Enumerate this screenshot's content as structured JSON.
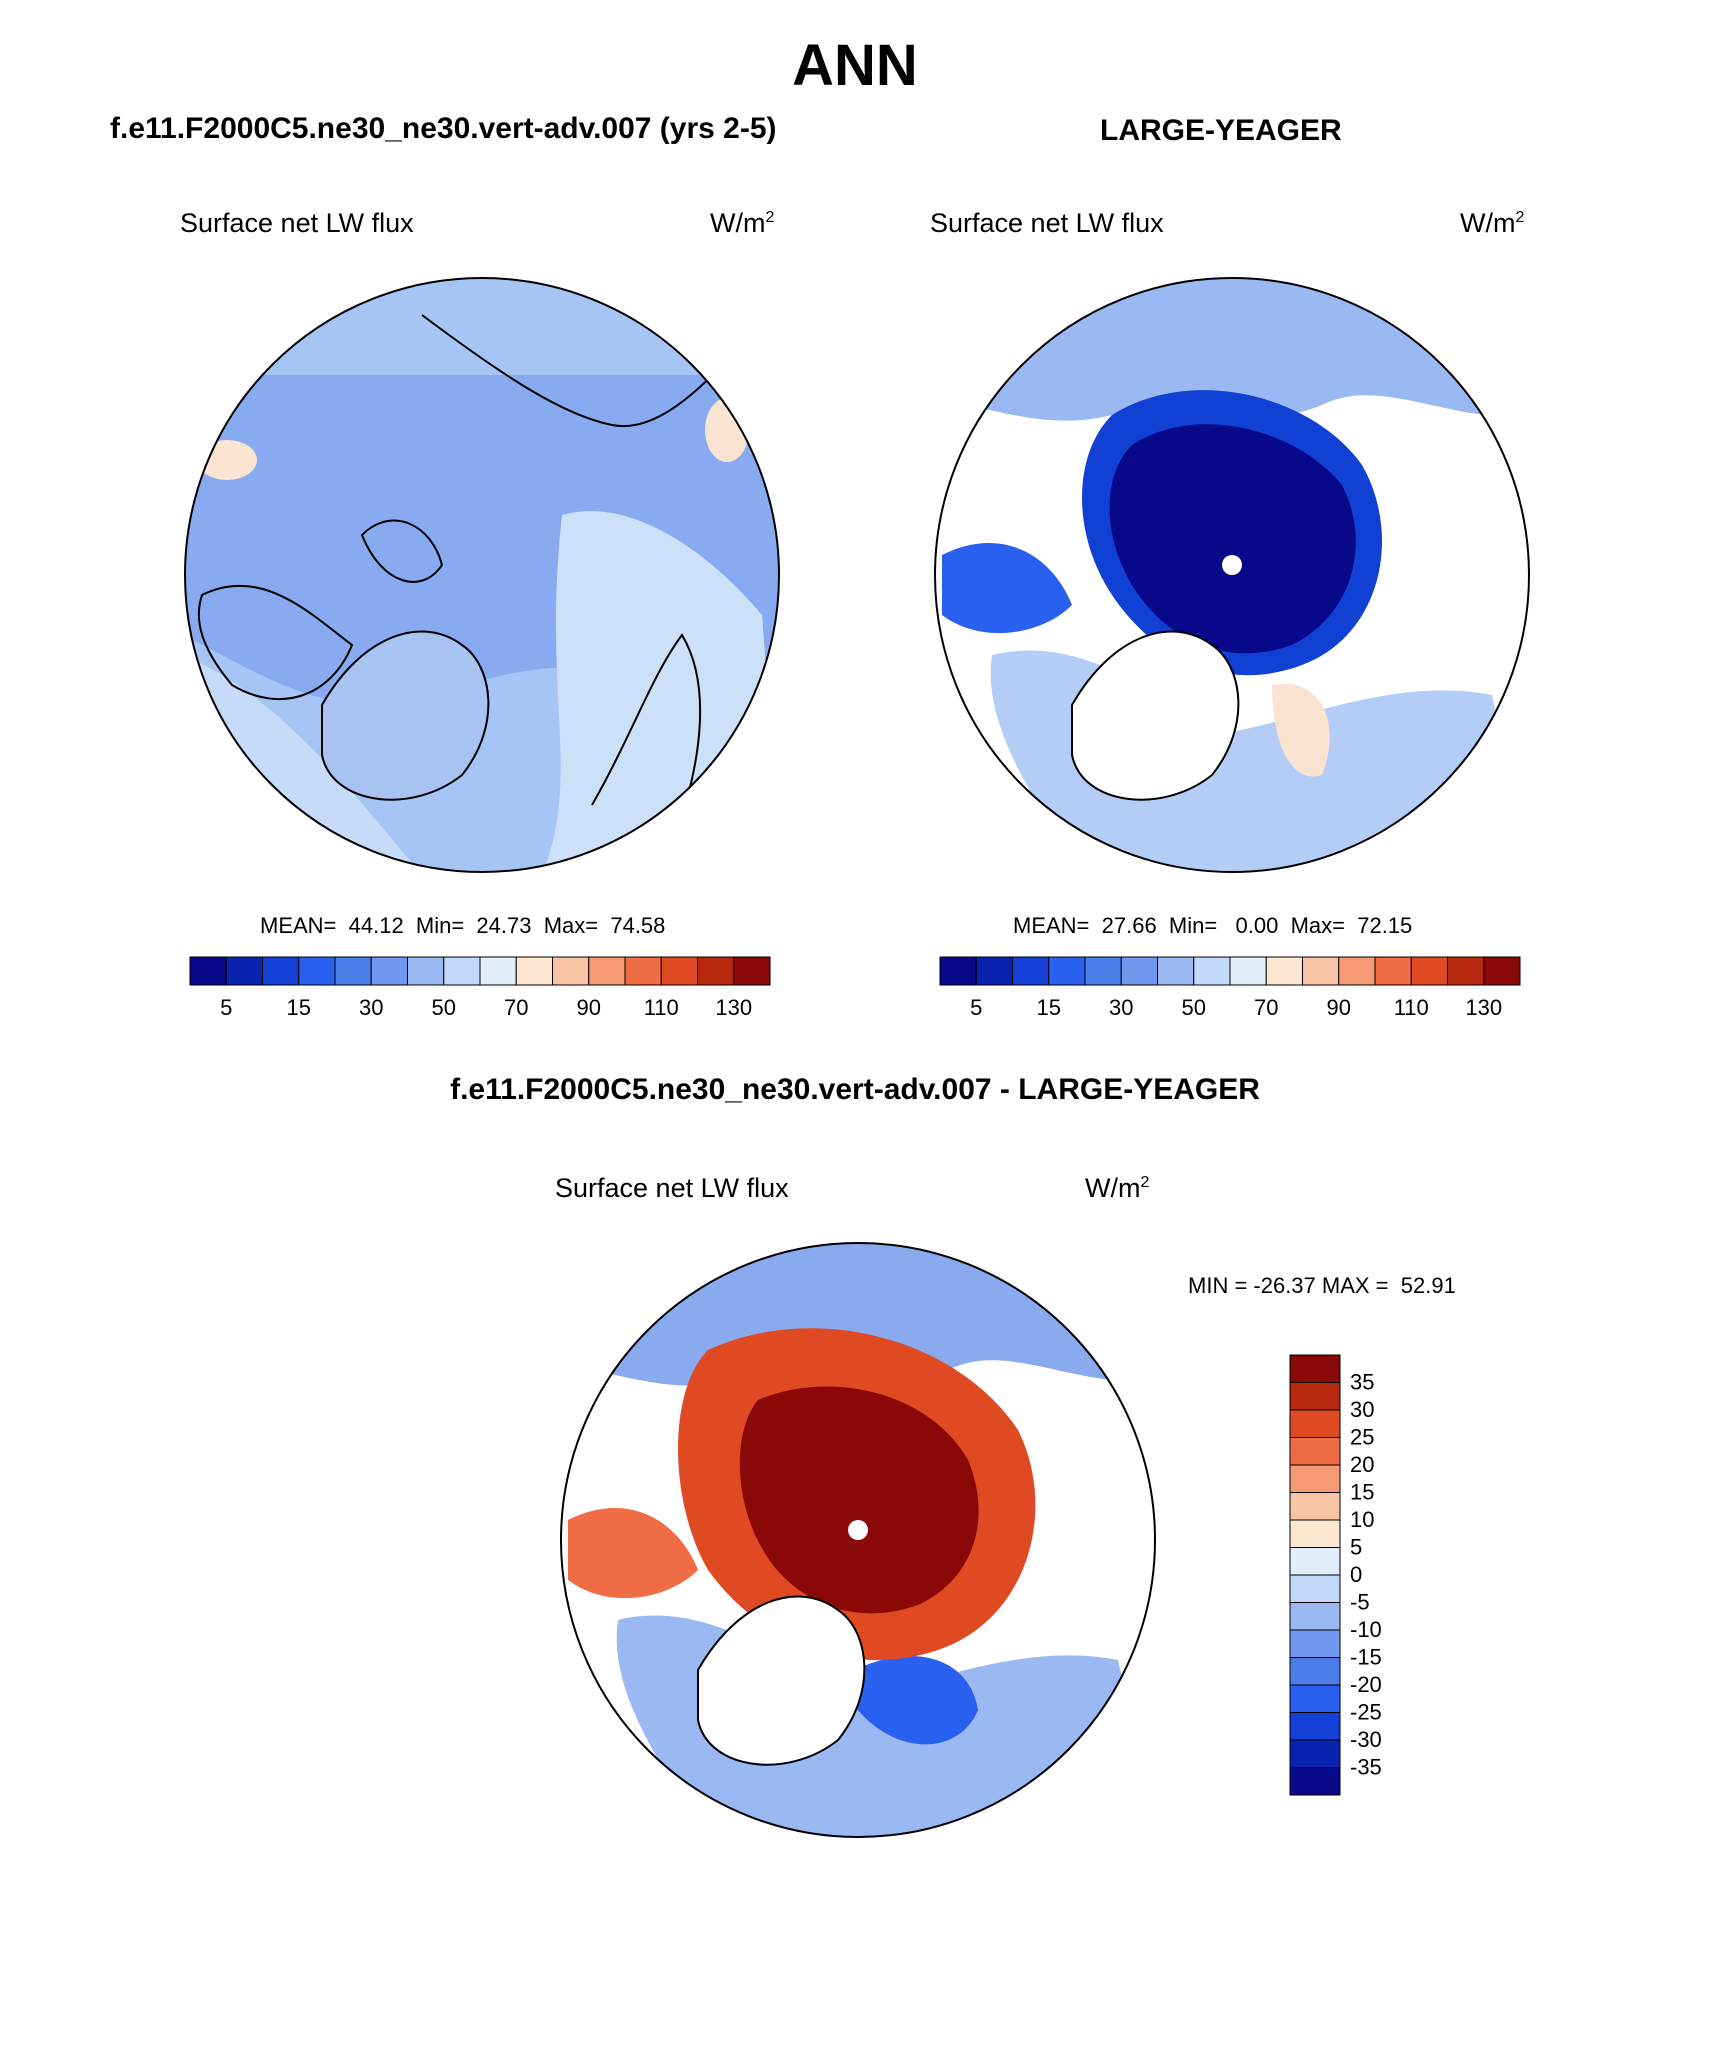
{
  "page": {
    "title": "ANN",
    "left_subtitle": "f.e11.F2000C5.ne30_ne30.vert-adv.007 (yrs 2-5)",
    "right_subtitle": "LARGE-YEAGER",
    "diff_subtitle": "f.e11.F2000C5.ne30_ne30.vert-adv.007 - LARGE-YEAGER"
  },
  "panels": [
    {
      "variable": "Surface net LW flux",
      "units_base": "W/m",
      "units_exp": "2",
      "stats": "MEAN=  44.12  Min=  24.73  Max=  74.58"
    },
    {
      "variable": "Surface net LW flux",
      "units_base": "W/m",
      "units_exp": "2",
      "stats": "MEAN=  27.66  Min=   0.00  Max=  72.15"
    },
    {
      "variable": "Surface net LW flux",
      "units_base": "W/m",
      "units_exp": "2",
      "stats": "MIN = -26.37 MAX =  52.91"
    }
  ],
  "colors": {
    "abs_scale": [
      "#08088a",
      "#0a22b0",
      "#1540d8",
      "#2a60f0",
      "#4a7de8",
      "#7098ee",
      "#9ab8f2",
      "#c2d8f8",
      "#e2eefb",
      "#fde6d2",
      "#f9c4a6",
      "#f59a74",
      "#f06c44",
      "#e04a22",
      "#b82a10",
      "#8a0808"
    ],
    "diff_scale": [
      "#08088a",
      "#0a22b0",
      "#1540d8",
      "#2a60f0",
      "#4a7de8",
      "#7098ee",
      "#9ab8f2",
      "#c2d8f8",
      "#e2eefb",
      "#fde6d2",
      "#f9c4a6",
      "#f59a74",
      "#f06c44",
      "#e04a22",
      "#b82a10",
      "#8a0808"
    ],
    "land": "#ffffff",
    "outline": "#000000"
  },
  "chart_data": [
    {
      "type": "heatmap",
      "title": "f.e11.F2000C5.ne30_ne30.vert-adv.007 (yrs 2-5)",
      "projection": "north-polar-stereographic",
      "variable": "Surface net LW flux",
      "units": "W/m^2",
      "mean": 44.12,
      "min": 24.73,
      "max": 74.58,
      "colorbar_tick_labels": [
        "5",
        "15",
        "30",
        "50",
        "70",
        "90",
        "110",
        "130"
      ],
      "colorbar_boundaries": [
        5,
        10,
        15,
        20,
        25,
        30,
        40,
        50,
        60,
        70,
        80,
        90,
        100,
        110,
        120,
        130
      ],
      "colorbar_orientation": "horizontal"
    },
    {
      "type": "heatmap",
      "title": "LARGE-YEAGER",
      "projection": "north-polar-stereographic",
      "variable": "Surface net LW flux",
      "units": "W/m^2",
      "mean": 27.66,
      "min": 0.0,
      "max": 72.15,
      "colorbar_tick_labels": [
        "5",
        "15",
        "30",
        "50",
        "70",
        "90",
        "110",
        "130"
      ],
      "colorbar_boundaries": [
        5,
        10,
        15,
        20,
        25,
        30,
        40,
        50,
        60,
        70,
        80,
        90,
        100,
        110,
        120,
        130
      ],
      "colorbar_orientation": "horizontal"
    },
    {
      "type": "heatmap",
      "title": "f.e11.F2000C5.ne30_ne30.vert-adv.007 - LARGE-YEAGER",
      "projection": "north-polar-stereographic",
      "variable": "Surface net LW flux",
      "units": "W/m^2",
      "min": -26.37,
      "max": 52.91,
      "colorbar_tick_labels": [
        "35",
        "30",
        "25",
        "20",
        "15",
        "10",
        "5",
        "0",
        "-5",
        "-10",
        "-15",
        "-20",
        "-25",
        "-30",
        "-35"
      ],
      "colorbar_orientation": "vertical"
    }
  ]
}
